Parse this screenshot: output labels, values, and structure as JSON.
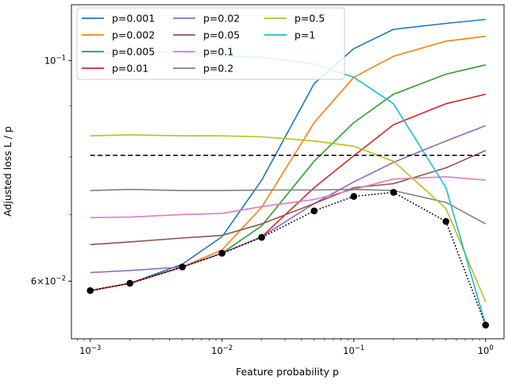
{
  "chart_data": {
    "type": "line",
    "title": "",
    "xlabel": "Feature probability p",
    "ylabel": "Adjusted loss L / p",
    "xscale": "log",
    "yscale": "log",
    "xlim": [
      0.00072,
      1.38
    ],
    "ylim": [
      0.0525,
      0.1138
    ],
    "grid": false,
    "legend": {
      "placement": "top-left",
      "ncols": 3
    },
    "x_ticks": [
      {
        "value": 0.001,
        "label": "10^-3"
      },
      {
        "value": 0.01,
        "label": "10^-2"
      },
      {
        "value": 0.1,
        "label": "10^-1"
      },
      {
        "value": 1,
        "label": "10^0"
      }
    ],
    "y_ticks": [
      {
        "value": 0.1,
        "label": "10^-1"
      },
      {
        "value": 0.06,
        "label": "6×10^-2"
      }
    ],
    "x_points": [
      0.001,
      0.002,
      0.005,
      0.01,
      0.02,
      0.05,
      0.1,
      0.2,
      0.5,
      1
    ],
    "series": [
      {
        "name": "p=0.001",
        "color": "#1f77b4",
        "values": [
          0.0587,
          0.0597,
          0.0624,
          0.0665,
          0.0758,
          0.0948,
          0.1028,
          0.1075,
          0.109,
          0.11
        ]
      },
      {
        "name": "p=0.002",
        "color": "#ff7f0e",
        "values": [
          0.0587,
          0.0597,
          0.062,
          0.0645,
          0.0712,
          0.0866,
          0.0962,
          0.101,
          0.1046,
          0.1058
        ]
      },
      {
        "name": "p=0.005",
        "color": "#2ca02c",
        "values": [
          0.0587,
          0.0597,
          0.062,
          0.064,
          0.0682,
          0.0792,
          0.0866,
          0.0925,
          0.0969,
          0.099
        ]
      },
      {
        "name": "p=0.01",
        "color": "#d62728",
        "values": [
          0.0587,
          0.0597,
          0.062,
          0.064,
          0.0665,
          0.0745,
          0.0802,
          0.0862,
          0.0905,
          0.0925
        ]
      },
      {
        "name": "p=0.02",
        "color": "#9467bd",
        "values": [
          0.0612,
          0.0615,
          0.062,
          0.064,
          0.0665,
          0.0718,
          0.0755,
          0.079,
          0.083,
          0.086
        ]
      },
      {
        "name": "p=0.05",
        "color": "#8c564b",
        "values": [
          0.0653,
          0.0657,
          0.0663,
          0.0667,
          0.0685,
          0.0718,
          0.0745,
          0.0752,
          0.078,
          0.0812
        ]
      },
      {
        "name": "p=0.1",
        "color": "#e377c2",
        "values": [
          0.0695,
          0.0696,
          0.07,
          0.0702,
          0.0713,
          0.0725,
          0.0742,
          0.076,
          0.0764,
          0.0758
        ]
      },
      {
        "name": "p=0.2",
        "color": "#7f7f7f",
        "values": [
          0.074,
          0.0742,
          0.074,
          0.074,
          0.0741,
          0.0741,
          0.0742,
          0.074,
          0.072,
          0.0685
        ]
      },
      {
        "name": "p=0.5",
        "color": "#bcbd22",
        "values": [
          0.084,
          0.0842,
          0.084,
          0.084,
          0.0838,
          0.083,
          0.082,
          0.0792,
          0.071,
          0.0572
        ]
      },
      {
        "name": "p=1",
        "color": "#17becf",
        "values": [
          0.1018,
          0.1018,
          0.102,
          0.101,
          0.1008,
          0.0992,
          0.0962,
          0.0905,
          0.0745,
          0.0542
        ]
      }
    ],
    "reference_line": {
      "style": "dashed",
      "color": "#000000",
      "value": 0.0803,
      "x_from": 0.001,
      "x_to": 1
    },
    "envelope": {
      "style": "dotted",
      "color": "#000000",
      "marker": "circle",
      "x": [
        0.001,
        0.002,
        0.005,
        0.01,
        0.02,
        0.05,
        0.1,
        0.2,
        0.5,
        1
      ],
      "y": [
        0.0587,
        0.0597,
        0.062,
        0.064,
        0.0664,
        0.0706,
        0.073,
        0.0737,
        0.0689,
        0.0542
      ]
    }
  }
}
